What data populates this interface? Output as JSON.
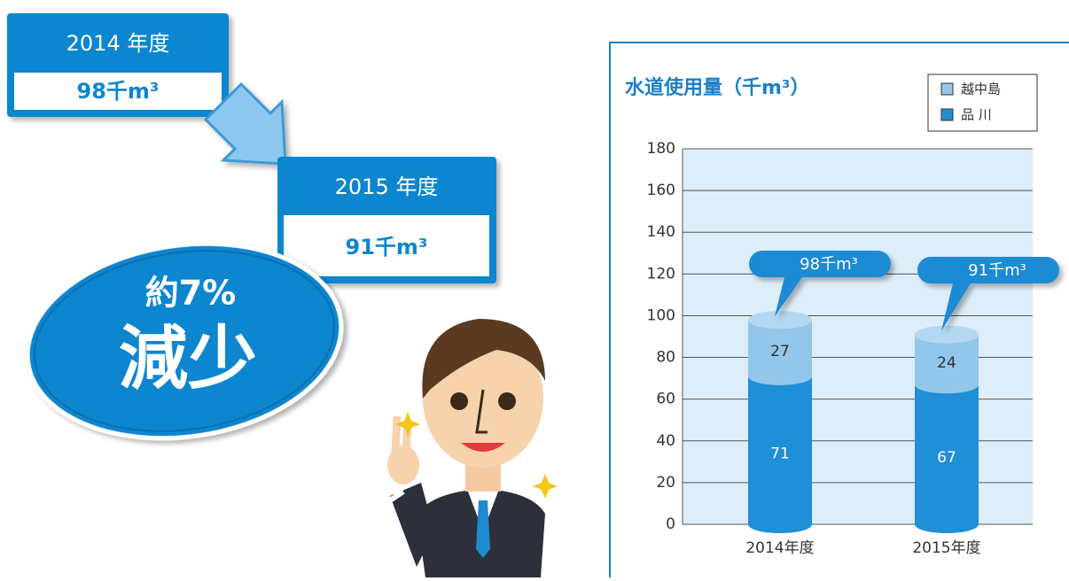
{
  "infographic": {
    "before_year": "2014 年度",
    "before_value": "98千m³",
    "after_year": "2015 年度",
    "after_value": "91千m³",
    "change_top": "約7%",
    "change_bottom": "減少"
  },
  "chart_data": {
    "type": "stacked_bar",
    "title": "水道使用量（千m³）",
    "categories": [
      "2014年度",
      "2015年度"
    ],
    "series": [
      {
        "name": "品 川",
        "color": "#1f8fd8",
        "values": [
          71,
          67
        ]
      },
      {
        "name": "越中島",
        "color": "#92c6ea",
        "values": [
          27,
          24
        ]
      }
    ],
    "annotations": [
      "98千m³",
      "91千m³"
    ],
    "ylim": [
      0,
      180
    ],
    "yticks": [
      0,
      20,
      40,
      60,
      80,
      100,
      120,
      140,
      160,
      180
    ],
    "grid": true,
    "legend": "upper right"
  }
}
